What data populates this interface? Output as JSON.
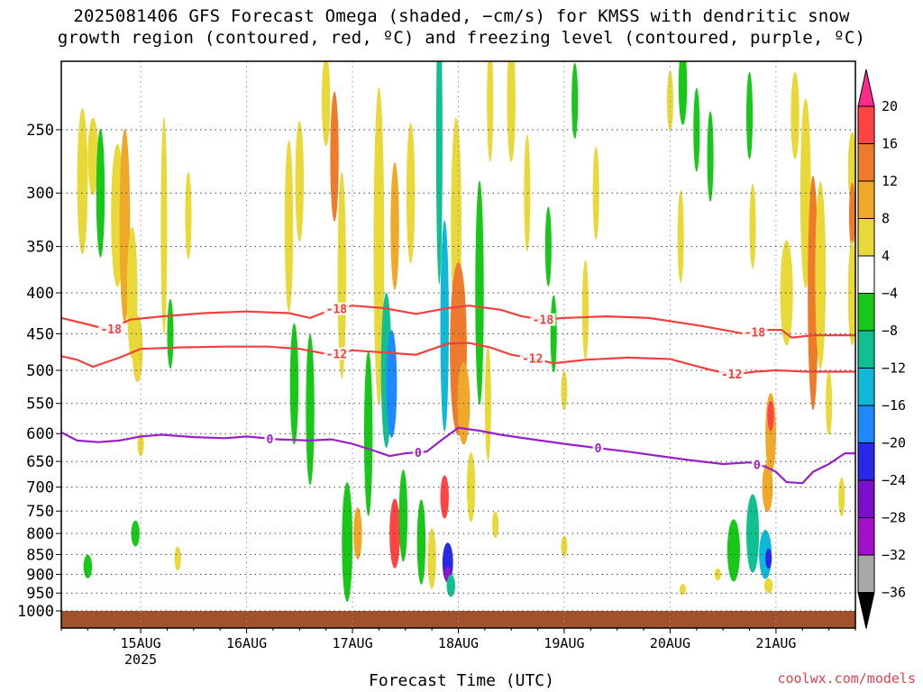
{
  "title": {
    "line1": "2025081406 GFS Forecast Omega (shaded, −cm/s) for KMSS with dendritic snow",
    "line2": "growth region (contoured, red, ºC) and freezing level (contoured, purple, ºC)"
  },
  "credit": "coolwx.com/models",
  "chart_data": {
    "type": "heatmap",
    "title": "2025081406 GFS Forecast Omega (shaded, −cm/s) for KMSS with dendritic snow growth region (contoured, red, ºC) and freezing level (contoured, purple, ºC)",
    "xlabel": "Forecast Time (UTC)",
    "ylabel": "",
    "x_ticks": [
      {
        "label": "15AUG",
        "sub": "2025",
        "day": 15
      },
      {
        "label": "16AUG",
        "sub": "",
        "day": 16
      },
      {
        "label": "17AUG",
        "sub": "",
        "day": 17
      },
      {
        "label": "18AUG",
        "sub": "",
        "day": 18
      },
      {
        "label": "19AUG",
        "sub": "",
        "day": 19
      },
      {
        "label": "20AUG",
        "sub": "",
        "day": 20
      },
      {
        "label": "21AUG",
        "sub": "",
        "day": 21
      }
    ],
    "xlim_day": [
      14.25,
      21.75
    ],
    "y_ticks": [
      250,
      300,
      350,
      400,
      450,
      500,
      550,
      600,
      650,
      700,
      750,
      800,
      850,
      900,
      950,
      1000
    ],
    "ylim_hPa": [
      200,
      1020
    ],
    "y_scale": "log-pressure",
    "grid": true,
    "colorbar": {
      "labels": [
        "20",
        "16",
        "12",
        "8",
        "4",
        "−4",
        "−8",
        "−12",
        "−16",
        "−20",
        "−24",
        "−28",
        "−32",
        "−36"
      ],
      "colors": [
        "#ff2a8a",
        "#ff4444",
        "#ef7a2a",
        "#efa828",
        "#e8d838",
        "#ffffff",
        "#18c818",
        "#10c090",
        "#10b8d8",
        "#1e88ff",
        "#2828e8",
        "#7a10cc",
        "#a010c8",
        "#a8a8a8",
        "#000000"
      ]
    },
    "omega_cells": [
      {
        "day": 14.45,
        "p": 290,
        "dd": 0.05,
        "dp": 120,
        "v": 6
      },
      {
        "day": 14.55,
        "p": 270,
        "dd": 0.05,
        "dp": 60,
        "v": 5
      },
      {
        "day": 14.62,
        "p": 300,
        "dd": 0.04,
        "dp": 110,
        "v": -6
      },
      {
        "day": 14.78,
        "p": 320,
        "dd": 0.06,
        "dp": 130,
        "v": 6
      },
      {
        "day": 14.85,
        "p": 330,
        "dd": 0.05,
        "dp": 180,
        "v": 9
      },
      {
        "day": 14.92,
        "p": 400,
        "dd": 0.05,
        "dp": 150,
        "v": 6
      },
      {
        "day": 14.97,
        "p": 470,
        "dd": 0.05,
        "dp": 90,
        "v": 5
      },
      {
        "day": 15.22,
        "p": 330,
        "dd": 0.03,
        "dp": 200,
        "v": 5
      },
      {
        "day": 15.28,
        "p": 450,
        "dd": 0.03,
        "dp": 90,
        "v": -6
      },
      {
        "day": 15.0,
        "p": 620,
        "dd": 0.03,
        "dp": 40,
        "v": 5
      },
      {
        "day": 14.95,
        "p": 800,
        "dd": 0.04,
        "dp": 60,
        "v": -6
      },
      {
        "day": 14.5,
        "p": 880,
        "dd": 0.04,
        "dp": 60,
        "v": -6
      },
      {
        "day": 15.35,
        "p": 860,
        "dd": 0.03,
        "dp": 60,
        "v": 5
      },
      {
        "day": 15.45,
        "p": 320,
        "dd": 0.03,
        "dp": 80,
        "v": 5
      },
      {
        "day": 16.4,
        "p": 330,
        "dd": 0.04,
        "dp": 160,
        "v": 6
      },
      {
        "day": 16.5,
        "p": 290,
        "dd": 0.04,
        "dp": 100,
        "v": 5
      },
      {
        "day": 16.45,
        "p": 520,
        "dd": 0.04,
        "dp": 180,
        "v": -6
      },
      {
        "day": 16.6,
        "p": 560,
        "dd": 0.04,
        "dp": 240,
        "v": -6
      },
      {
        "day": 16.75,
        "p": 230,
        "dd": 0.04,
        "dp": 60,
        "v": 6
      },
      {
        "day": 16.83,
        "p": 270,
        "dd": 0.04,
        "dp": 100,
        "v": 12
      },
      {
        "day": 16.9,
        "p": 380,
        "dd": 0.04,
        "dp": 220,
        "v": 6
      },
      {
        "day": 16.95,
        "p": 820,
        "dd": 0.05,
        "dp": 280,
        "v": -6
      },
      {
        "day": 17.05,
        "p": 800,
        "dd": 0.04,
        "dp": 120,
        "v": 10
      },
      {
        "day": 17.15,
        "p": 600,
        "dd": 0.04,
        "dp": 280,
        "v": -6
      },
      {
        "day": 17.25,
        "p": 350,
        "dd": 0.05,
        "dp": 300,
        "v": 6
      },
      {
        "day": 17.32,
        "p": 500,
        "dd": 0.05,
        "dp": 220,
        "v": -8
      },
      {
        "day": 17.37,
        "p": 520,
        "dd": 0.05,
        "dp": 160,
        "v": -16
      },
      {
        "day": 17.4,
        "p": 330,
        "dd": 0.04,
        "dp": 120,
        "v": 9
      },
      {
        "day": 17.4,
        "p": 800,
        "dd": 0.05,
        "dp": 160,
        "v": 16
      },
      {
        "day": 17.48,
        "p": 760,
        "dd": 0.04,
        "dp": 200,
        "v": -6
      },
      {
        "day": 17.55,
        "p": 300,
        "dd": 0.04,
        "dp": 120,
        "v": 5
      },
      {
        "day": 17.65,
        "p": 820,
        "dd": 0.04,
        "dp": 200,
        "v": -6
      },
      {
        "day": 17.75,
        "p": 860,
        "dd": 0.04,
        "dp": 150,
        "v": 5
      },
      {
        "day": 17.82,
        "p": 260,
        "dd": 0.03,
        "dp": 200,
        "v": -8
      },
      {
        "day": 17.87,
        "p": 440,
        "dd": 0.04,
        "dp": 260,
        "v": -14
      },
      {
        "day": 17.87,
        "p": 720,
        "dd": 0.04,
        "dp": 90,
        "v": 16
      },
      {
        "day": 17.9,
        "p": 870,
        "dd": 0.05,
        "dp": 100,
        "v": -22
      },
      {
        "day": 17.9,
        "p": 900,
        "dd": 0.03,
        "dp": 40,
        "v": -30
      },
      {
        "day": 17.93,
        "p": 930,
        "dd": 0.04,
        "dp": 60,
        "v": -10
      },
      {
        "day": 17.98,
        "p": 330,
        "dd": 0.05,
        "dp": 200,
        "v": 6
      },
      {
        "day": 18.0,
        "p": 470,
        "dd": 0.08,
        "dp": 230,
        "v": 12
      },
      {
        "day": 18.05,
        "p": 550,
        "dd": 0.06,
        "dp": 130,
        "v": 9
      },
      {
        "day": 18.12,
        "p": 700,
        "dd": 0.04,
        "dp": 140,
        "v": 5
      },
      {
        "day": 18.2,
        "p": 400,
        "dd": 0.04,
        "dp": 250,
        "v": -6
      },
      {
        "day": 18.28,
        "p": 550,
        "dd": 0.03,
        "dp": 180,
        "v": 5
      },
      {
        "day": 18.3,
        "p": 230,
        "dd": 0.03,
        "dp": 80,
        "v": 6
      },
      {
        "day": 18.35,
        "p": 780,
        "dd": 0.03,
        "dp": 60,
        "v": 5
      },
      {
        "day": 18.5,
        "p": 230,
        "dd": 0.04,
        "dp": 80,
        "v": 5
      },
      {
        "day": 18.65,
        "p": 300,
        "dd": 0.03,
        "dp": 100,
        "v": 5
      },
      {
        "day": 18.85,
        "p": 350,
        "dd": 0.03,
        "dp": 80,
        "v": -6
      },
      {
        "day": 18.9,
        "p": 450,
        "dd": 0.03,
        "dp": 100,
        "v": -6
      },
      {
        "day": 19.0,
        "p": 530,
        "dd": 0.03,
        "dp": 60,
        "v": 5
      },
      {
        "day": 19.0,
        "p": 830,
        "dd": 0.03,
        "dp": 50,
        "v": 5
      },
      {
        "day": 19.1,
        "p": 230,
        "dd": 0.03,
        "dp": 50,
        "v": -6
      },
      {
        "day": 19.2,
        "p": 420,
        "dd": 0.03,
        "dp": 120,
        "v": 5
      },
      {
        "day": 19.3,
        "p": 300,
        "dd": 0.03,
        "dp": 80,
        "v": 5
      },
      {
        "day": 20.0,
        "p": 230,
        "dd": 0.03,
        "dp": 40,
        "v": 5
      },
      {
        "day": 20.1,
        "p": 340,
        "dd": 0.03,
        "dp": 90,
        "v": 5
      },
      {
        "day": 20.12,
        "p": 220,
        "dd": 0.04,
        "dp": 50,
        "v": -6
      },
      {
        "day": 20.25,
        "p": 250,
        "dd": 0.03,
        "dp": 60,
        "v": -6
      },
      {
        "day": 20.38,
        "p": 270,
        "dd": 0.03,
        "dp": 70,
        "v": -6
      },
      {
        "day": 20.12,
        "p": 940,
        "dd": 0.03,
        "dp": 30,
        "v": 5
      },
      {
        "day": 20.45,
        "p": 900,
        "dd": 0.03,
        "dp": 30,
        "v": 5
      },
      {
        "day": 20.75,
        "p": 240,
        "dd": 0.03,
        "dp": 60,
        "v": -6
      },
      {
        "day": 20.78,
        "p": 330,
        "dd": 0.03,
        "dp": 80,
        "v": 5
      },
      {
        "day": 20.95,
        "p": 600,
        "dd": 0.05,
        "dp": 140,
        "v": 9
      },
      {
        "day": 20.95,
        "p": 570,
        "dd": 0.03,
        "dp": 50,
        "v": 16
      },
      {
        "day": 20.92,
        "p": 700,
        "dd": 0.05,
        "dp": 100,
        "v": 9
      },
      {
        "day": 20.6,
        "p": 840,
        "dd": 0.06,
        "dp": 150,
        "v": -6
      },
      {
        "day": 20.78,
        "p": 800,
        "dd": 0.06,
        "dp": 180,
        "v": -8
      },
      {
        "day": 20.9,
        "p": 850,
        "dd": 0.06,
        "dp": 120,
        "v": -14
      },
      {
        "day": 20.93,
        "p": 860,
        "dd": 0.03,
        "dp": 50,
        "v": -20
      },
      {
        "day": 20.93,
        "p": 930,
        "dd": 0.04,
        "dp": 40,
        "v": 5
      },
      {
        "day": 21.1,
        "p": 400,
        "dd": 0.06,
        "dp": 120,
        "v": 5
      },
      {
        "day": 21.18,
        "p": 240,
        "dd": 0.04,
        "dp": 60,
        "v": 6
      },
      {
        "day": 21.28,
        "p": 300,
        "dd": 0.05,
        "dp": 160,
        "v": 6
      },
      {
        "day": 21.35,
        "p": 400,
        "dd": 0.05,
        "dp": 260,
        "v": 12
      },
      {
        "day": 21.42,
        "p": 380,
        "dd": 0.05,
        "dp": 200,
        "v": 6
      },
      {
        "day": 21.5,
        "p": 550,
        "dd": 0.03,
        "dp": 100,
        "v": 5
      },
      {
        "day": 21.62,
        "p": 720,
        "dd": 0.03,
        "dp": 80,
        "v": 5
      },
      {
        "day": 21.72,
        "p": 280,
        "dd": 0.04,
        "dp": 60,
        "v": 6
      },
      {
        "day": 21.72,
        "p": 320,
        "dd": 0.03,
        "dp": 60,
        "v": 12
      },
      {
        "day": 21.72,
        "p": 400,
        "dd": 0.04,
        "dp": 120,
        "v": 6
      }
    ],
    "contours": [
      {
        "name": "-18",
        "kind": "dendritic",
        "color": "#f04040",
        "labels": [
          {
            "day": 14.72,
            "text": "-18"
          },
          {
            "day": 16.85,
            "text": "-18"
          },
          {
            "day": 18.8,
            "text": "-18"
          },
          {
            "day": 20.8,
            "text": "-18"
          }
        ],
        "points": [
          [
            14.25,
            430
          ],
          [
            14.5,
            438
          ],
          [
            14.7,
            445
          ],
          [
            14.9,
            432
          ],
          [
            15.2,
            428
          ],
          [
            15.6,
            424
          ],
          [
            16.0,
            422
          ],
          [
            16.4,
            424
          ],
          [
            16.6,
            430
          ],
          [
            16.8,
            420
          ],
          [
            17.0,
            415
          ],
          [
            17.3,
            418
          ],
          [
            17.6,
            425
          ],
          [
            17.9,
            418
          ],
          [
            18.1,
            415
          ],
          [
            18.4,
            420
          ],
          [
            18.6,
            428
          ],
          [
            18.8,
            432
          ],
          [
            19.0,
            430
          ],
          [
            19.4,
            428
          ],
          [
            19.8,
            430
          ],
          [
            20.1,
            436
          ],
          [
            20.3,
            440
          ],
          [
            20.5,
            445
          ],
          [
            20.7,
            450
          ],
          [
            20.9,
            445
          ],
          [
            21.05,
            445
          ],
          [
            21.15,
            455
          ],
          [
            21.35,
            452
          ],
          [
            21.75,
            452
          ]
        ]
      },
      {
        "name": "-12",
        "kind": "dendritic",
        "color": "#f04040",
        "labels": [
          {
            "day": 16.85,
            "text": "-12"
          },
          {
            "day": 18.7,
            "text": "-12"
          },
          {
            "day": 20.58,
            "text": "-12"
          }
        ],
        "points": [
          [
            14.25,
            480
          ],
          [
            14.4,
            485
          ],
          [
            14.55,
            495
          ],
          [
            14.8,
            482
          ],
          [
            15.0,
            470
          ],
          [
            15.4,
            468
          ],
          [
            15.8,
            467
          ],
          [
            16.2,
            467
          ],
          [
            16.5,
            470
          ],
          [
            16.8,
            478
          ],
          [
            17.0,
            472
          ],
          [
            17.3,
            475
          ],
          [
            17.6,
            478
          ],
          [
            17.9,
            463
          ],
          [
            18.1,
            462
          ],
          [
            18.3,
            468
          ],
          [
            18.5,
            478
          ],
          [
            18.7,
            483
          ],
          [
            18.9,
            490
          ],
          [
            19.2,
            485
          ],
          [
            19.6,
            482
          ],
          [
            20.0,
            484
          ],
          [
            20.2,
            492
          ],
          [
            20.4,
            500
          ],
          [
            20.6,
            506
          ],
          [
            20.8,
            502
          ],
          [
            21.0,
            500
          ],
          [
            21.3,
            502
          ],
          [
            21.6,
            502
          ],
          [
            21.75,
            502
          ]
        ]
      },
      {
        "name": "0",
        "kind": "freezing",
        "color": "#9820c8",
        "labels": [
          {
            "day": 16.22,
            "text": "0"
          },
          {
            "day": 17.62,
            "text": "0"
          },
          {
            "day": 19.32,
            "text": "0"
          },
          {
            "day": 20.82,
            "text": "0"
          }
        ],
        "points": [
          [
            14.25,
            598
          ],
          [
            14.4,
            612
          ],
          [
            14.6,
            615
          ],
          [
            14.8,
            612
          ],
          [
            15.0,
            605
          ],
          [
            15.2,
            602
          ],
          [
            15.5,
            606
          ],
          [
            15.8,
            608
          ],
          [
            16.0,
            605
          ],
          [
            16.3,
            610
          ],
          [
            16.6,
            612
          ],
          [
            16.8,
            610
          ],
          [
            17.0,
            618
          ],
          [
            17.2,
            630
          ],
          [
            17.35,
            640
          ],
          [
            17.5,
            635
          ],
          [
            17.7,
            632
          ],
          [
            17.85,
            610
          ],
          [
            18.0,
            590
          ],
          [
            18.2,
            595
          ],
          [
            18.4,
            602
          ],
          [
            18.7,
            610
          ],
          [
            19.0,
            618
          ],
          [
            19.3,
            625
          ],
          [
            19.6,
            632
          ],
          [
            19.9,
            640
          ],
          [
            20.2,
            648
          ],
          [
            20.5,
            655
          ],
          [
            20.75,
            652
          ],
          [
            20.9,
            660
          ],
          [
            21.0,
            670
          ],
          [
            21.1,
            690
          ],
          [
            21.25,
            692
          ],
          [
            21.35,
            670
          ],
          [
            21.5,
            655
          ],
          [
            21.65,
            635
          ],
          [
            21.75,
            635
          ]
        ]
      }
    ]
  }
}
